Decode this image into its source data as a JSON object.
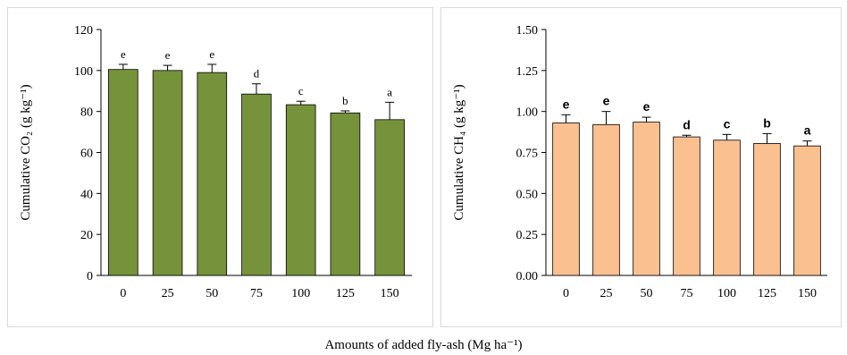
{
  "common_xlabel": "Amounts of added fly-ash (Mg ha⁻¹)",
  "chart_data": [
    {
      "type": "bar",
      "categories": [
        "0",
        "25",
        "50",
        "75",
        "100",
        "125",
        "150"
      ],
      "values": [
        100.5,
        100,
        99,
        88.5,
        83.3,
        79.3,
        76
      ],
      "errors": [
        2.5,
        2.5,
        4,
        5,
        1.7,
        1,
        8.5
      ],
      "significance": [
        "e",
        "e",
        "e",
        "d",
        "c",
        "b",
        "a"
      ],
      "ylabel": "Cumulative CO₂ (g kg⁻¹)",
      "ylim": [
        0,
        120
      ],
      "yticks": [
        0,
        20,
        40,
        60,
        80,
        100,
        120
      ],
      "ytick_labels": [
        "0",
        "20",
        "40",
        "60",
        "80",
        "100",
        "120"
      ],
      "bar_color": "#76933c",
      "grid": false
    },
    {
      "type": "bar",
      "categories": [
        "0",
        "25",
        "50",
        "75",
        "100",
        "125",
        "150"
      ],
      "values": [
        0.93,
        0.92,
        0.935,
        0.845,
        0.825,
        0.805,
        0.79
      ],
      "errors": [
        0.05,
        0.08,
        0.03,
        0.01,
        0.035,
        0.06,
        0.03
      ],
      "significance": [
        "e",
        "e",
        "e",
        "d",
        "c",
        "b",
        "a"
      ],
      "ylabel": "Cumulative CH₄ (g kg⁻¹)",
      "ylim": [
        0,
        1.5
      ],
      "yticks": [
        0,
        0.25,
        0.5,
        0.75,
        1.0,
        1.25,
        1.5
      ],
      "ytick_labels": [
        "0.00",
        "0.25",
        "0.50",
        "0.75",
        "1.00",
        "1.25",
        "1.50"
      ],
      "bar_color": "#fac090",
      "grid": false
    }
  ]
}
